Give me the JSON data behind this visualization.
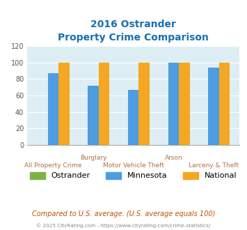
{
  "title_line1": "2016 Ostrander",
  "title_line2": "Property Crime Comparison",
  "categories": [
    "All Property Crime",
    "Burglary",
    "Motor Vehicle Theft",
    "Arson",
    "Larceny & Theft"
  ],
  "tick_labels_row1": [
    "",
    "Burglary",
    "",
    "Arson",
    ""
  ],
  "tick_labels_row2": [
    "All Property Crime",
    "",
    "Motor Vehicle Theft",
    "",
    "Larceny & Theft"
  ],
  "ostrander": [
    0,
    0,
    0,
    0,
    0
  ],
  "minnesota": [
    87,
    72,
    67,
    100,
    94
  ],
  "national": [
    100,
    100,
    100,
    100,
    100
  ],
  "colors": {
    "ostrander": "#7cb342",
    "minnesota": "#4d9de0",
    "national": "#f5a623"
  },
  "ylim": [
    0,
    120
  ],
  "yticks": [
    0,
    20,
    40,
    60,
    80,
    100,
    120
  ],
  "legend_labels": [
    "Ostrander",
    "Minnesota",
    "National"
  ],
  "footnote1": "Compared to U.S. average. (U.S. average equals 100)",
  "footnote2": "© 2025 CityRating.com - https://www.cityrating.com/crime-statistics/",
  "title_color": "#1a6faf",
  "tick_label_color": "#b07040",
  "background_color": "#ddeef5",
  "bar_width": 0.27,
  "footnote1_color": "#c05000",
  "footnote2_color": "#888888"
}
